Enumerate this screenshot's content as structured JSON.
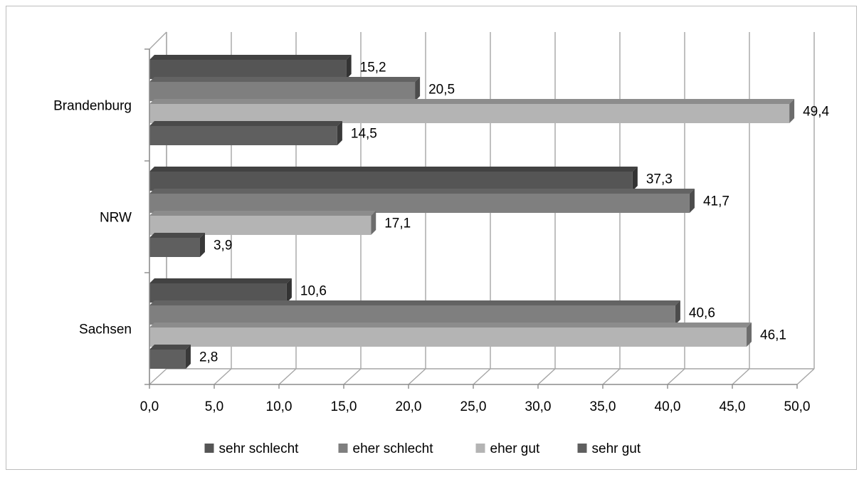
{
  "chart_data": {
    "type": "bar",
    "orientation": "horizontal",
    "three_d": true,
    "title": "",
    "xlabel": "",
    "ylabel": "",
    "categories": [
      "Brandenburg",
      "NRW",
      "Sachsen"
    ],
    "series": [
      {
        "name": "sehr schlecht",
        "values": [
          15.2,
          37.3,
          10.6
        ],
        "labels": [
          "15,2",
          "37,3",
          "10,6"
        ],
        "color": "#555555"
      },
      {
        "name": "eher schlecht",
        "values": [
          20.5,
          41.7,
          40.6
        ],
        "labels": [
          "20,5",
          "41,7",
          "40,6"
        ],
        "color": "#7f7f7f"
      },
      {
        "name": "eher gut",
        "values": [
          49.4,
          17.1,
          46.1
        ],
        "labels": [
          "49,4",
          "17,1",
          "46,1"
        ],
        "color": "#b4b4b4"
      },
      {
        "name": "sehr gut",
        "values": [
          14.5,
          3.9,
          2.8
        ],
        "labels": [
          "14,5",
          "3,9",
          "2,8"
        ],
        "color": "#5f5f5f"
      }
    ],
    "xlim": [
      0,
      50
    ],
    "xticks": [
      "0,0",
      "5,0",
      "10,0",
      "15,0",
      "20,0",
      "25,0",
      "30,0",
      "35,0",
      "40,0",
      "45,0",
      "50,0"
    ],
    "grid": true,
    "legend": "bottom"
  }
}
